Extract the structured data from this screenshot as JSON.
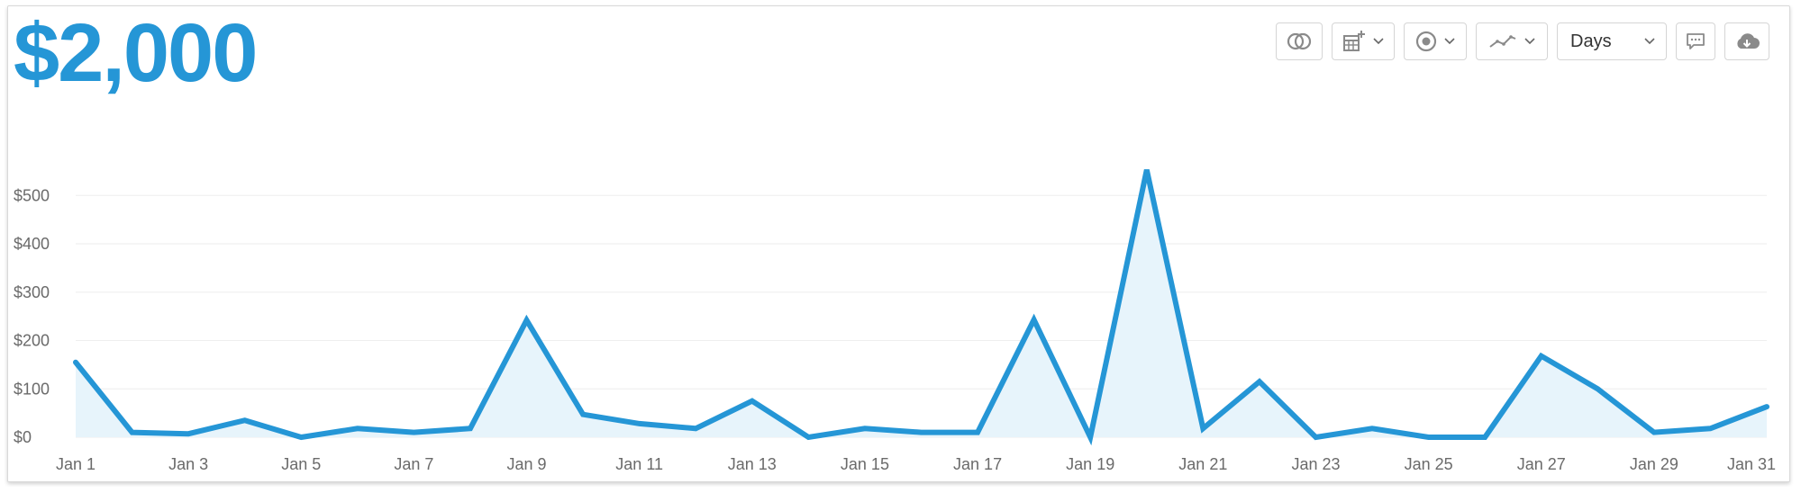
{
  "header": {
    "total": "$2,000"
  },
  "toolbar": {
    "range_label": "Days",
    "icons": [
      "compare-icon",
      "calendar-add-icon",
      "target-icon",
      "trend-line-icon",
      "comment-icon",
      "cloud-download-icon"
    ]
  },
  "colors": {
    "accent": "#2596d6",
    "fill": "#e7f4fb",
    "grid": "#eeeeee"
  },
  "chart_data": {
    "type": "area",
    "categories": [
      "Jan 1",
      "Jan 2",
      "Jan 3",
      "Jan 4",
      "Jan 5",
      "Jan 6",
      "Jan 7",
      "Jan 8",
      "Jan 9",
      "Jan 10",
      "Jan 11",
      "Jan 12",
      "Jan 13",
      "Jan 14",
      "Jan 15",
      "Jan 16",
      "Jan 17",
      "Jan 18",
      "Jan 19",
      "Jan 20",
      "Jan 21",
      "Jan 22",
      "Jan 23",
      "Jan 24",
      "Jan 25",
      "Jan 26",
      "Jan 27",
      "Jan 28",
      "Jan 29",
      "Jan 30",
      "Jan 31"
    ],
    "values": [
      155,
      10,
      7,
      35,
      0,
      18,
      10,
      18,
      242,
      47,
      28,
      18,
      75,
      0,
      18,
      10,
      10,
      243,
      0,
      553,
      18,
      115,
      0,
      18,
      0,
      0,
      168,
      100,
      10,
      18,
      63
    ],
    "x_tick_labels": [
      "Jan 1",
      "Jan 3",
      "Jan 5",
      "Jan 7",
      "Jan 9",
      "Jan 11",
      "Jan 13",
      "Jan 15",
      "Jan 17",
      "Jan 19",
      "Jan 21",
      "Jan 23",
      "Jan 25",
      "Jan 27",
      "Jan 29",
      "Jan 31"
    ],
    "y_tick_labels": [
      "$0",
      "$100",
      "$200",
      "$300",
      "$400",
      "$500"
    ],
    "y_ticks": [
      0,
      100,
      200,
      300,
      400,
      500
    ],
    "ylim": [
      0,
      560
    ],
    "grid": true,
    "legend": "none"
  }
}
